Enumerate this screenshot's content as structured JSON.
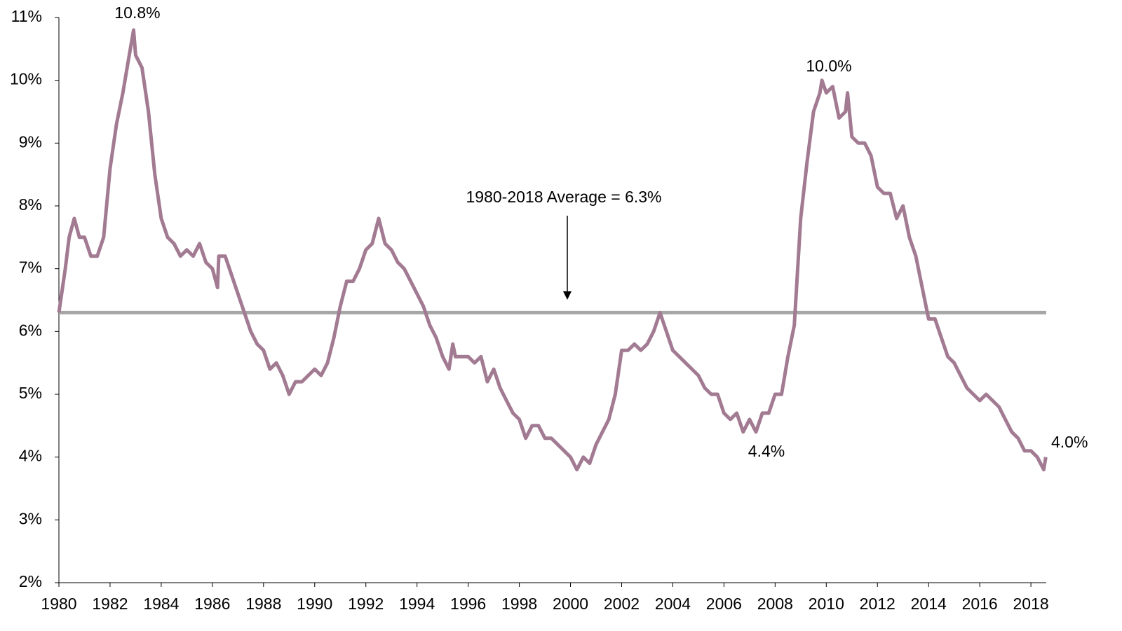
{
  "chart_data": {
    "type": "line",
    "color": "#a27b93",
    "average": 6.3,
    "average_color": "#a6a6a6",
    "annotations": [
      "10.8%",
      "10.0%",
      "4.4%",
      "4.0%",
      "1980-2018 Average = 6.3%"
    ],
    "x": [
      1980.0,
      1980.25,
      1980.4,
      1980.6,
      1980.8,
      1981.0,
      1981.25,
      1981.5,
      1981.75,
      1982.0,
      1982.25,
      1982.5,
      1982.75,
      1982.92,
      1983.0,
      1983.25,
      1983.5,
      1983.75,
      1984.0,
      1984.25,
      1984.5,
      1984.75,
      1985.0,
      1985.25,
      1985.5,
      1985.75,
      1986.0,
      1986.2,
      1986.25,
      1986.5,
      1986.75,
      1987.0,
      1987.25,
      1987.5,
      1987.75,
      1988.0,
      1988.25,
      1988.5,
      1988.75,
      1989.0,
      1989.25,
      1989.5,
      1989.75,
      1990.0,
      1990.25,
      1990.5,
      1990.75,
      1991.0,
      1991.25,
      1991.5,
      1991.75,
      1992.0,
      1992.25,
      1992.5,
      1992.75,
      1993.0,
      1993.25,
      1993.5,
      1993.75,
      1994.0,
      1994.25,
      1994.5,
      1994.75,
      1995.0,
      1995.25,
      1995.4,
      1995.5,
      1995.75,
      1996.0,
      1996.25,
      1996.5,
      1996.75,
      1997.0,
      1997.25,
      1997.5,
      1997.75,
      1998.0,
      1998.25,
      1998.5,
      1998.75,
      1999.0,
      1999.25,
      1999.5,
      1999.75,
      2000.0,
      2000.25,
      2000.5,
      2000.75,
      2001.0,
      2001.25,
      2001.5,
      2001.75,
      2002.0,
      2002.25,
      2002.5,
      2002.75,
      2003.0,
      2003.25,
      2003.5,
      2003.75,
      2004.0,
      2004.25,
      2004.5,
      2004.75,
      2005.0,
      2005.25,
      2005.5,
      2005.75,
      2006.0,
      2006.25,
      2006.5,
      2006.75,
      2007.0,
      2007.25,
      2007.5,
      2007.75,
      2008.0,
      2008.25,
      2008.5,
      2008.75,
      2009.0,
      2009.25,
      2009.5,
      2009.75,
      2009.83,
      2010.0,
      2010.25,
      2010.5,
      2010.75,
      2010.83,
      2011.0,
      2011.25,
      2011.5,
      2011.75,
      2012.0,
      2012.25,
      2012.5,
      2012.75,
      2013.0,
      2013.25,
      2013.5,
      2013.75,
      2014.0,
      2014.25,
      2014.5,
      2014.75,
      2015.0,
      2015.25,
      2015.5,
      2015.75,
      2016.0,
      2016.25,
      2016.5,
      2016.75,
      2017.0,
      2017.25,
      2017.5,
      2017.75,
      2018.0,
      2018.25,
      2018.5,
      2018.58
    ],
    "values": [
      6.3,
      7.0,
      7.5,
      7.8,
      7.5,
      7.5,
      7.2,
      7.2,
      7.5,
      8.6,
      9.3,
      9.8,
      10.4,
      10.8,
      10.4,
      10.2,
      9.5,
      8.5,
      7.8,
      7.5,
      7.4,
      7.2,
      7.3,
      7.2,
      7.4,
      7.1,
      7.0,
      6.7,
      7.2,
      7.2,
      6.9,
      6.6,
      6.3,
      6.0,
      5.8,
      5.7,
      5.4,
      5.5,
      5.3,
      5.0,
      5.2,
      5.2,
      5.3,
      5.4,
      5.3,
      5.5,
      5.9,
      6.4,
      6.8,
      6.8,
      7.0,
      7.3,
      7.4,
      7.8,
      7.4,
      7.3,
      7.1,
      7.0,
      6.8,
      6.6,
      6.4,
      6.1,
      5.9,
      5.6,
      5.4,
      5.8,
      5.6,
      5.6,
      5.6,
      5.5,
      5.6,
      5.2,
      5.4,
      5.1,
      4.9,
      4.7,
      4.6,
      4.3,
      4.5,
      4.5,
      4.3,
      4.3,
      4.2,
      4.1,
      4.0,
      3.8,
      4.0,
      3.9,
      4.2,
      4.4,
      4.6,
      5.0,
      5.7,
      5.7,
      5.8,
      5.7,
      5.8,
      6.0,
      6.3,
      6.0,
      5.7,
      5.6,
      5.5,
      5.4,
      5.3,
      5.1,
      5.0,
      5.0,
      4.7,
      4.6,
      4.7,
      4.4,
      4.6,
      4.4,
      4.7,
      4.7,
      5.0,
      5.0,
      5.6,
      6.1,
      7.8,
      8.7,
      9.5,
      9.8,
      10.0,
      9.8,
      9.9,
      9.4,
      9.5,
      9.8,
      9.1,
      9.0,
      9.0,
      8.8,
      8.3,
      8.2,
      8.2,
      7.8,
      8.0,
      7.5,
      7.2,
      6.7,
      6.2,
      6.2,
      5.9,
      5.6,
      5.5,
      5.3,
      5.1,
      5.0,
      4.9,
      5.0,
      4.9,
      4.8,
      4.6,
      4.4,
      4.3,
      4.1,
      4.1,
      4.0,
      3.8,
      4.0
    ],
    "xlim": [
      1980,
      2018.6
    ],
    "xticks": [
      1980,
      1982,
      1984,
      1986,
      1988,
      1990,
      1992,
      1994,
      1996,
      1998,
      2000,
      2002,
      2004,
      2006,
      2008,
      2010,
      2012,
      2014,
      2016,
      2018
    ],
    "ylim": [
      2,
      11
    ],
    "yticks": [
      {
        "value": 2,
        "label": "2%"
      },
      {
        "value": 3,
        "label": "3%"
      },
      {
        "value": 4,
        "label": "4%"
      },
      {
        "value": 5,
        "label": "5%"
      },
      {
        "value": 6,
        "label": "6%"
      },
      {
        "value": 7,
        "label": "7%"
      },
      {
        "value": 8,
        "label": "8%"
      },
      {
        "value": 9,
        "label": "9%"
      },
      {
        "value": 10,
        "label": "10%"
      },
      {
        "value": 11,
        "label": "11%"
      }
    ]
  }
}
